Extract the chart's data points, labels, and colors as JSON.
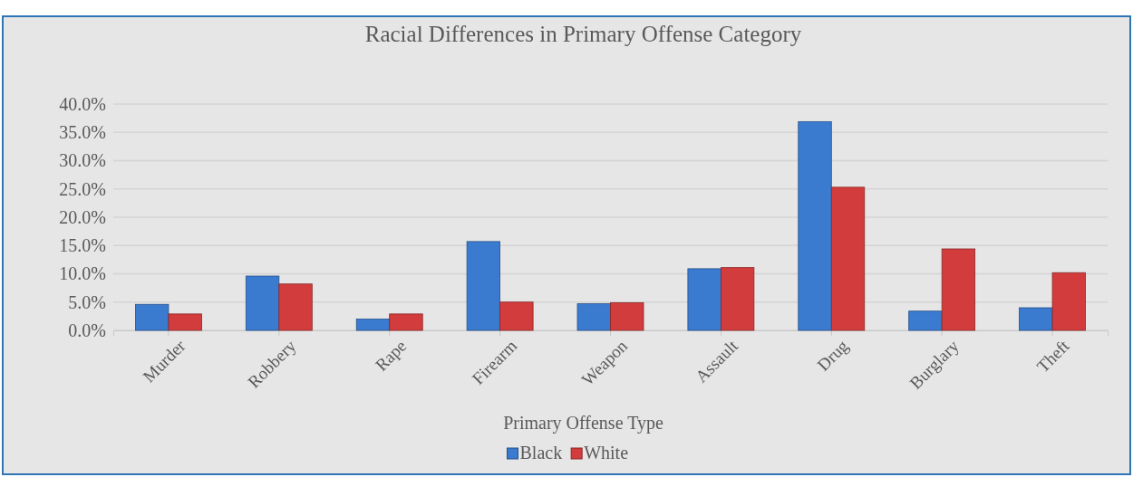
{
  "chart_data": {
    "type": "bar",
    "title": "Racial Differences in Primary Offense Category",
    "xlabel": "Primary Offense Type",
    "categories": [
      "Murder",
      "Robbery",
      "Rape",
      "Firearm",
      "Weapon",
      "Assault",
      "Drug",
      "Burglary",
      "Theft"
    ],
    "series": [
      {
        "name": "Black",
        "color": "#3a7bd0",
        "values": [
          4.6,
          9.6,
          2.0,
          15.7,
          4.7,
          10.9,
          36.9,
          3.4,
          4.0
        ]
      },
      {
        "name": "White",
        "color": "#d23c3c",
        "values": [
          2.9,
          8.2,
          2.9,
          5.0,
          4.9,
          11.1,
          25.3,
          14.4,
          10.2
        ]
      }
    ],
    "ylim": [
      0,
      40
    ],
    "yticks": [
      {
        "value": 0,
        "label": "0.0%"
      },
      {
        "value": 5,
        "label": "5.0%"
      },
      {
        "value": 10,
        "label": "10.0%"
      },
      {
        "value": 15,
        "label": "15.0%"
      },
      {
        "value": 20,
        "label": "20.0%"
      },
      {
        "value": 25,
        "label": "25.0%"
      },
      {
        "value": 30,
        "label": "30.0%"
      },
      {
        "value": 35,
        "label": "35.0%"
      },
      {
        "value": 40,
        "label": "40.0%"
      }
    ],
    "grid": "y",
    "legend": "bottom"
  }
}
